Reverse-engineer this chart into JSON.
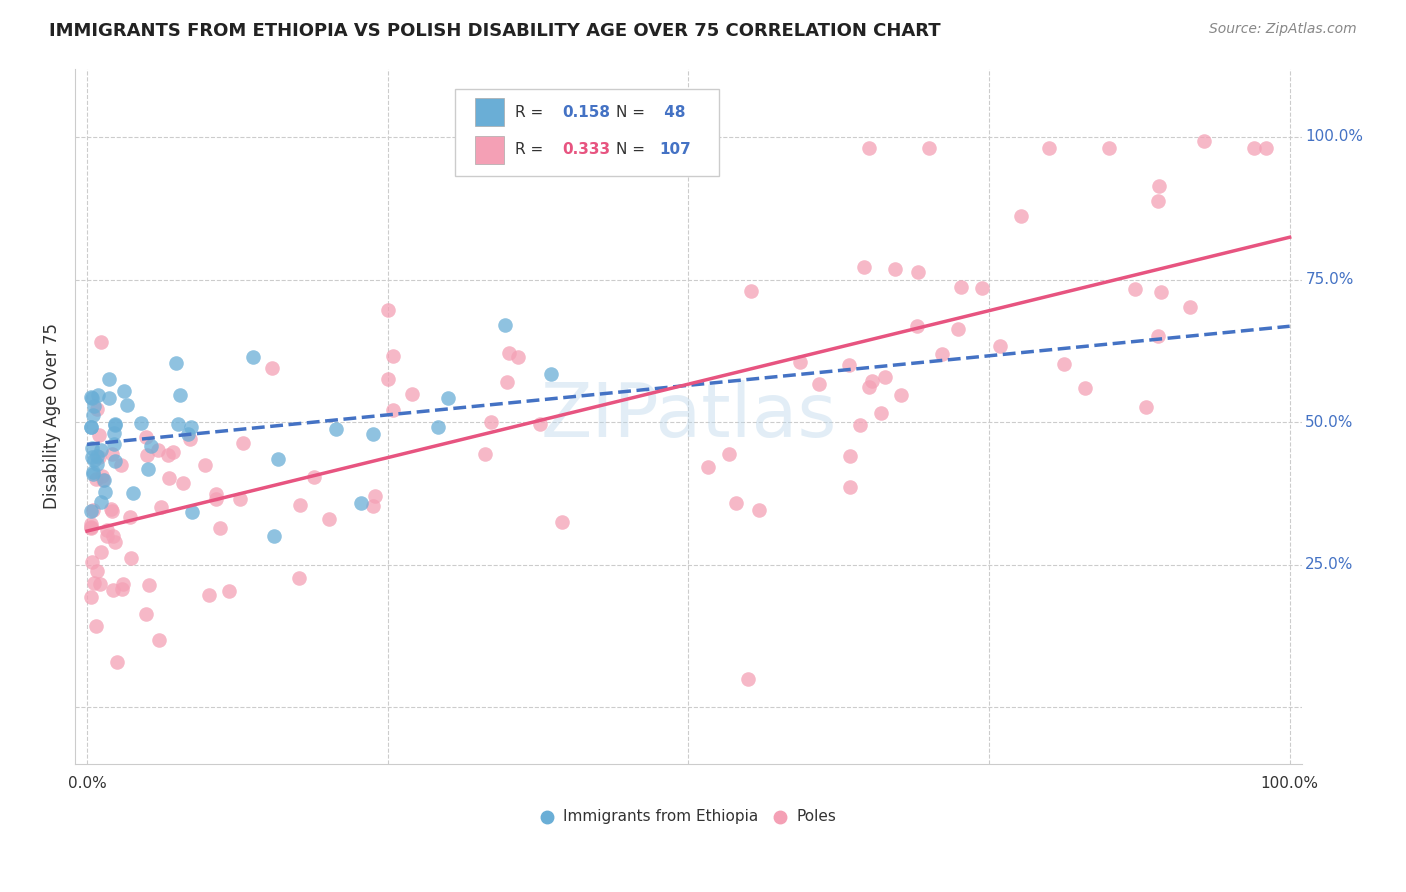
{
  "title": "IMMIGRANTS FROM ETHIOPIA VS POLISH DISABILITY AGE OVER 75 CORRELATION CHART",
  "source": "Source: ZipAtlas.com",
  "ylabel": "Disability Age Over 75",
  "ethiopia_R": 0.158,
  "ethiopia_N": 48,
  "poles_R": 0.333,
  "poles_N": 107,
  "ethiopia_color": "#6aaed6",
  "poles_color": "#f4a0b5",
  "ethiopia_line_color": "#4472c4",
  "poles_line_color": "#e75480",
  "watermark": "ZIPatlas",
  "right_ytick_vals": [
    0.25,
    0.5,
    0.75,
    1.0
  ],
  "right_ytick_labels": [
    "25.0%",
    "50.0%",
    "75.0%",
    "100.0%"
  ],
  "grid_yticks": [
    0.0,
    0.25,
    0.5,
    0.75,
    1.0
  ],
  "grid_xticks": [
    0.0,
    0.25,
    0.5,
    0.75,
    1.0
  ],
  "xlim": [
    -0.01,
    1.01
  ],
  "ylim": [
    -0.1,
    1.12
  ]
}
